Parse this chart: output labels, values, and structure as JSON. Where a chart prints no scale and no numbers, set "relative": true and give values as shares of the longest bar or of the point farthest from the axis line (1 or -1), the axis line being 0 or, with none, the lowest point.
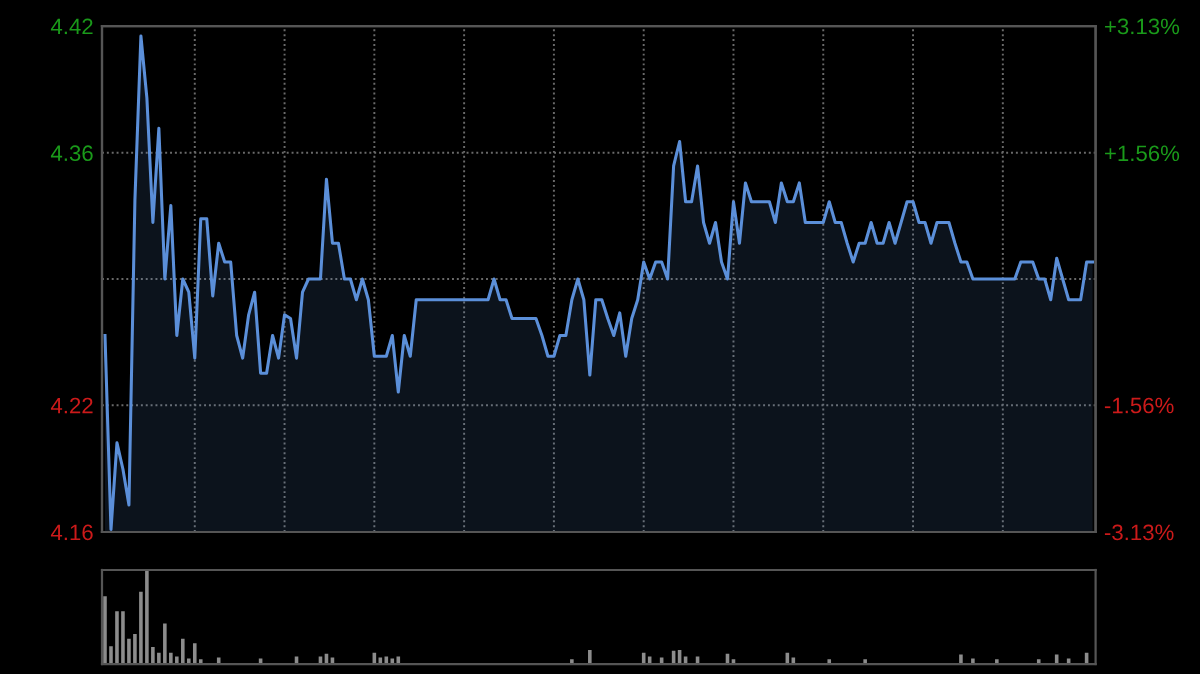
{
  "chart_data": [
    {
      "type": "area",
      "color": "#5b8fd9",
      "categories": [
        null,
        null,
        null,
        null,
        null,
        null,
        null,
        null,
        null,
        null,
        null,
        null,
        null,
        null,
        null,
        null,
        null,
        null,
        null,
        null,
        null,
        null,
        null,
        null,
        null,
        null,
        null,
        null,
        null,
        null,
        null,
        null,
        null,
        null,
        null,
        null,
        null,
        null,
        null,
        null,
        null,
        null,
        null,
        null,
        null,
        null,
        null,
        null,
        null,
        null,
        null,
        null,
        null,
        null,
        null,
        null,
        null,
        null,
        null,
        null,
        null,
        null,
        null,
        null,
        null,
        null,
        null,
        null,
        null,
        null,
        null,
        null,
        null,
        null,
        null,
        null,
        null,
        null,
        null,
        null,
        null,
        null,
        null,
        null,
        null,
        null,
        null,
        null,
        null,
        null,
        null,
        null,
        null,
        null,
        null,
        null,
        null,
        null,
        null,
        null,
        null,
        null,
        null,
        null,
        null,
        null,
        null,
        null,
        null,
        null,
        null,
        null,
        null,
        null,
        null,
        null,
        null,
        null,
        null,
        null,
        null,
        null,
        null,
        null,
        null,
        null,
        null,
        null,
        null,
        null,
        null,
        null,
        null,
        null,
        null,
        null,
        null,
        null,
        null,
        null,
        null,
        null,
        null,
        null,
        null,
        null,
        null,
        null,
        null,
        null,
        null,
        null,
        null,
        null,
        null,
        null,
        null,
        null,
        null,
        null,
        null,
        null,
        null,
        null,
        null,
        null
      ],
      "ylim": [
        4.1557,
        4.4243
      ],
      "yticks": [
        {
          "value": 4.1557,
          "label": "4.16"
        },
        {
          "value": 4.223,
          "label": "4.22"
        },
        {
          "value": 4.29,
          "label": null
        },
        {
          "value": 4.357,
          "label": "4.36"
        },
        {
          "value": 4.4243,
          "label": "4.42"
        }
      ],
      "y2lim": [
        -3.13,
        3.13
      ],
      "y2ticks": [
        {
          "value": -3.13,
          "label": "-3.13%"
        },
        {
          "value": -1.56,
          "label": "-1.56%"
        },
        {
          "value": 0,
          "label": null
        },
        {
          "value": 1.56,
          "label": "+1.56%"
        },
        {
          "value": 3.13,
          "label": "+3.13%"
        }
      ],
      "grid": true,
      "tick_labels": "y",
      "values": [
        4.26,
        4.157,
        4.203,
        4.189,
        4.17,
        4.332,
        4.419,
        4.386,
        4.32,
        4.37,
        4.29,
        4.329,
        4.26,
        4.29,
        4.283,
        4.248,
        4.322,
        4.322,
        4.281,
        4.309,
        4.299,
        4.299,
        4.26,
        4.248,
        4.271,
        4.283,
        4.24,
        4.24,
        4.26,
        4.248,
        4.271,
        4.269,
        4.248,
        4.283,
        4.29,
        4.29,
        4.29,
        4.343,
        4.309,
        4.309,
        4.29,
        4.29,
        4.279,
        4.29,
        4.279,
        4.249,
        4.249,
        4.249,
        4.26,
        4.23,
        4.26,
        4.249,
        4.279,
        4.279,
        4.279,
        4.279,
        4.279,
        4.279,
        4.279,
        4.279,
        4.279,
        4.279,
        4.279,
        4.279,
        4.279,
        4.29,
        4.279,
        4.279,
        4.269,
        4.269,
        4.269,
        4.269,
        4.269,
        4.26,
        4.249,
        4.249,
        4.26,
        4.26,
        4.279,
        4.29,
        4.279,
        4.239,
        4.279,
        4.279,
        4.269,
        4.26,
        4.272,
        4.249,
        4.269,
        4.279,
        4.299,
        4.29,
        4.299,
        4.299,
        4.29,
        4.35,
        4.363,
        4.331,
        4.331,
        4.35,
        4.32,
        4.309,
        4.32,
        4.299,
        4.29,
        4.331,
        4.309,
        4.341,
        4.331,
        4.331,
        4.331,
        4.331,
        4.32,
        4.341,
        4.331,
        4.331,
        4.341,
        4.32,
        4.32,
        4.32,
        4.32,
        4.331,
        4.32,
        4.32,
        4.309,
        4.299,
        4.309,
        4.309,
        4.32,
        4.309,
        4.309,
        4.32,
        4.309,
        4.32,
        4.331,
        4.331,
        4.32,
        4.32,
        4.309,
        4.32,
        4.32,
        4.32,
        4.309,
        4.299,
        4.299,
        4.29,
        4.29,
        4.29,
        4.29,
        4.29,
        4.29,
        4.29,
        4.29,
        4.299,
        4.299,
        4.299,
        4.29,
        4.29,
        4.279,
        4.301,
        4.29,
        4.279,
        4.279,
        4.279,
        4.299,
        4.299
      ]
    },
    {
      "type": "bar",
      "color": "#8c8c8c",
      "relative": true,
      "tick_labels": false,
      "categories": [
        null,
        null,
        null,
        null,
        null,
        null,
        null,
        null,
        null,
        null,
        null,
        null,
        null,
        null,
        null,
        null,
        null,
        null,
        null,
        null,
        null,
        null,
        null,
        null,
        null,
        null,
        null,
        null,
        null,
        null,
        null,
        null,
        null,
        null,
        null,
        null,
        null,
        null,
        null,
        null,
        null,
        null,
        null,
        null,
        null,
        null,
        null,
        null,
        null,
        null,
        null,
        null,
        null,
        null,
        null,
        null,
        null,
        null,
        null,
        null,
        null,
        null,
        null,
        null,
        null,
        null,
        null,
        null,
        null,
        null,
        null,
        null,
        null,
        null,
        null,
        null,
        null,
        null,
        null,
        null,
        null,
        null,
        null,
        null,
        null,
        null,
        null,
        null,
        null,
        null,
        null,
        null,
        null,
        null,
        null,
        null,
        null,
        null,
        null,
        null,
        null,
        null,
        null,
        null,
        null,
        null,
        null,
        null,
        null,
        null,
        null,
        null,
        null,
        null,
        null,
        null,
        null,
        null,
        null,
        null,
        null,
        null,
        null,
        null,
        null,
        null,
        null,
        null,
        null,
        null,
        null,
        null,
        null,
        null,
        null,
        null,
        null,
        null,
        null,
        null,
        null,
        null,
        null,
        null,
        null,
        null,
        null,
        null,
        null,
        null,
        null,
        null,
        null,
        null,
        null,
        null,
        null,
        null,
        null,
        null,
        null,
        null,
        null,
        null,
        null,
        null
      ],
      "values": [
        0.72,
        0.19,
        0.56,
        0.56,
        0.27,
        0.32,
        0.77,
        1,
        0.18,
        0.12,
        0.43,
        0.12,
        0.08,
        0.27,
        0.06,
        0.22,
        0.05,
        0,
        0,
        0.07,
        0,
        0,
        0,
        0,
        0,
        0,
        0.06,
        0,
        0,
        0,
        0,
        0,
        0.08,
        0,
        0,
        0,
        0.08,
        0.11,
        0.07,
        0,
        0,
        0,
        0,
        0,
        0,
        0.12,
        0.07,
        0.08,
        0.06,
        0.08,
        0,
        0,
        0,
        0,
        0,
        0,
        0,
        0,
        0,
        0,
        0,
        0,
        0,
        0,
        0,
        0,
        0,
        0,
        0,
        0,
        0,
        0,
        0,
        0,
        0,
        0,
        0,
        0,
        0.05,
        0,
        0,
        0.15,
        0,
        0,
        0,
        0,
        0,
        0,
        0,
        0,
        0.12,
        0.08,
        0,
        0.07,
        0,
        0.14,
        0.15,
        0.08,
        0,
        0.08,
        0,
        0,
        0,
        0,
        0.11,
        0.05,
        0,
        0,
        0,
        0,
        0,
        0,
        0,
        0,
        0.12,
        0.07,
        0,
        0,
        0,
        0,
        0,
        0.05,
        0,
        0,
        0,
        0,
        0,
        0.05,
        0,
        0,
        0,
        0,
        0,
        0,
        0,
        0,
        0,
        0,
        0,
        0,
        0,
        0,
        0,
        0.1,
        0,
        0.06,
        0,
        0,
        0,
        0.05,
        0,
        0,
        0,
        0,
        0,
        0,
        0.05,
        0,
        0,
        0.1,
        0,
        0.06,
        0,
        0,
        0.12,
        0
      ]
    }
  ]
}
